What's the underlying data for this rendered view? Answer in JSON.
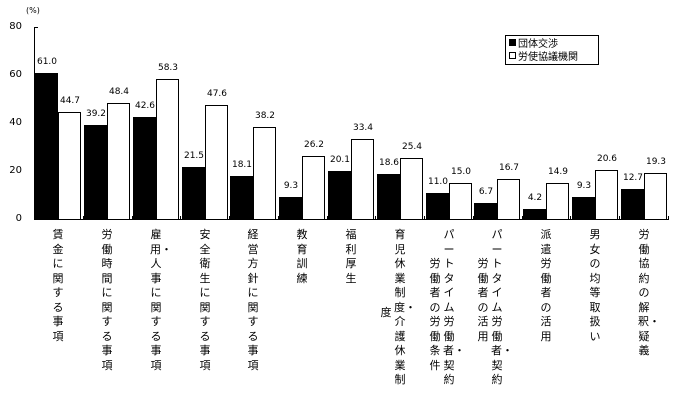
{
  "chart_data": {
    "type": "bar",
    "title": "",
    "xlabel": "",
    "ylabel": "(%)",
    "ylim": [
      0,
      80
    ],
    "yticks": [
      0,
      20,
      40,
      60,
      80
    ],
    "grid": false,
    "legend_position": "top-right",
    "categories": [
      "賃金に関する事項",
      "労働時間に関する事項",
      "雇用・人事に関する事項",
      "安全衛生に関する事項",
      "経営方針に関する事項",
      "教育訓練",
      "福利厚生",
      "育児休業制度・介護休業制度",
      "パートタイム労働者・契約労働者の労働条件",
      "パートタイム労働者・契約労働者の活用",
      "派遣労働者の活用",
      "男女の均等取扱い",
      "労働協約の解釈・疑義"
    ],
    "category_label_columns": [
      [
        "賃金に関する事項"
      ],
      [
        "労働時間に関する事項"
      ],
      [
        "雇用・人事に関する事項"
      ],
      [
        "安全衛生に関する事項"
      ],
      [
        "経営方針に関する事項"
      ],
      [
        "教育訓練"
      ],
      [
        "福利厚生"
      ],
      [
        "育児休業制度・介護休業制",
        "度"
      ],
      [
        "パートタイム労働者・契約",
        "労働者の労働条件"
      ],
      [
        "パートタイム労働者・契約",
        "労働者の活用"
      ],
      [
        "派遣労働者の活用"
      ],
      [
        "男女の均等取扱い"
      ],
      [
        "労働協約の解釈・疑義"
      ]
    ],
    "series": [
      {
        "name": "団体交渉",
        "color": "#000000",
        "values": [
          61.0,
          39.2,
          42.6,
          21.5,
          18.1,
          9.3,
          20.1,
          18.6,
          11.0,
          6.7,
          4.2,
          9.3,
          12.7
        ]
      },
      {
        "name": "労使協議機関",
        "color": "#ffffff",
        "values": [
          44.7,
          48.4,
          58.3,
          47.6,
          38.2,
          26.2,
          33.4,
          25.4,
          15.0,
          16.7,
          14.9,
          20.6,
          19.3
        ]
      }
    ]
  },
  "legend": {
    "items": [
      {
        "marker": "■",
        "label": "団体交渉"
      },
      {
        "marker": "□",
        "label": "労使協議機関"
      }
    ]
  },
  "axis": {
    "unit_label": "(%)"
  }
}
